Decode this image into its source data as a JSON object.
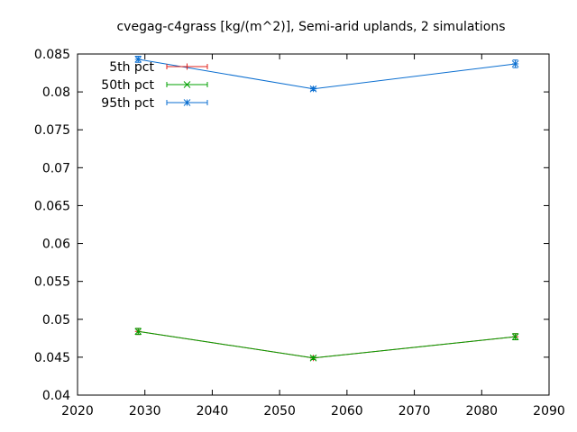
{
  "chart_data": {
    "type": "line",
    "title": "cvegag-c4grass [kg/(m^2)], Semi-arid uplands, 2 simulations",
    "xlabel": "",
    "ylabel": "",
    "xlim": [
      2020,
      2090
    ],
    "ylim": [
      0.04,
      0.085
    ],
    "x_ticks": [
      "2020",
      "2030",
      "2040",
      "2050",
      "2060",
      "2070",
      "2080",
      "2090"
    ],
    "y_ticks": [
      "0.04",
      "0.045",
      "0.05",
      "0.055",
      "0.06",
      "0.065",
      "0.07",
      "0.075",
      "0.08",
      "0.085"
    ],
    "legend_position": "top-left",
    "grid": false,
    "series": [
      {
        "name": "5th pct",
        "color": "#e0201b",
        "marker": "plus",
        "x": [
          2029,
          2055,
          2085
        ],
        "values": [
          0.0484,
          0.0449,
          0.0477
        ],
        "err": [
          0.0004,
          0.0002,
          0.0004
        ]
      },
      {
        "name": "50th pct",
        "color": "#00a000",
        "marker": "cross",
        "x": [
          2029,
          2055,
          2085
        ],
        "values": [
          0.0484,
          0.0449,
          0.0477
        ],
        "err": [
          0.0004,
          0.0002,
          0.0004
        ]
      },
      {
        "name": "95th pct",
        "color": "#0a6ed0",
        "marker": "star",
        "x": [
          2029,
          2055,
          2085
        ],
        "values": [
          0.0843,
          0.0804,
          0.0837
        ],
        "err": [
          0.0004,
          0.0002,
          0.0005
        ]
      }
    ]
  }
}
